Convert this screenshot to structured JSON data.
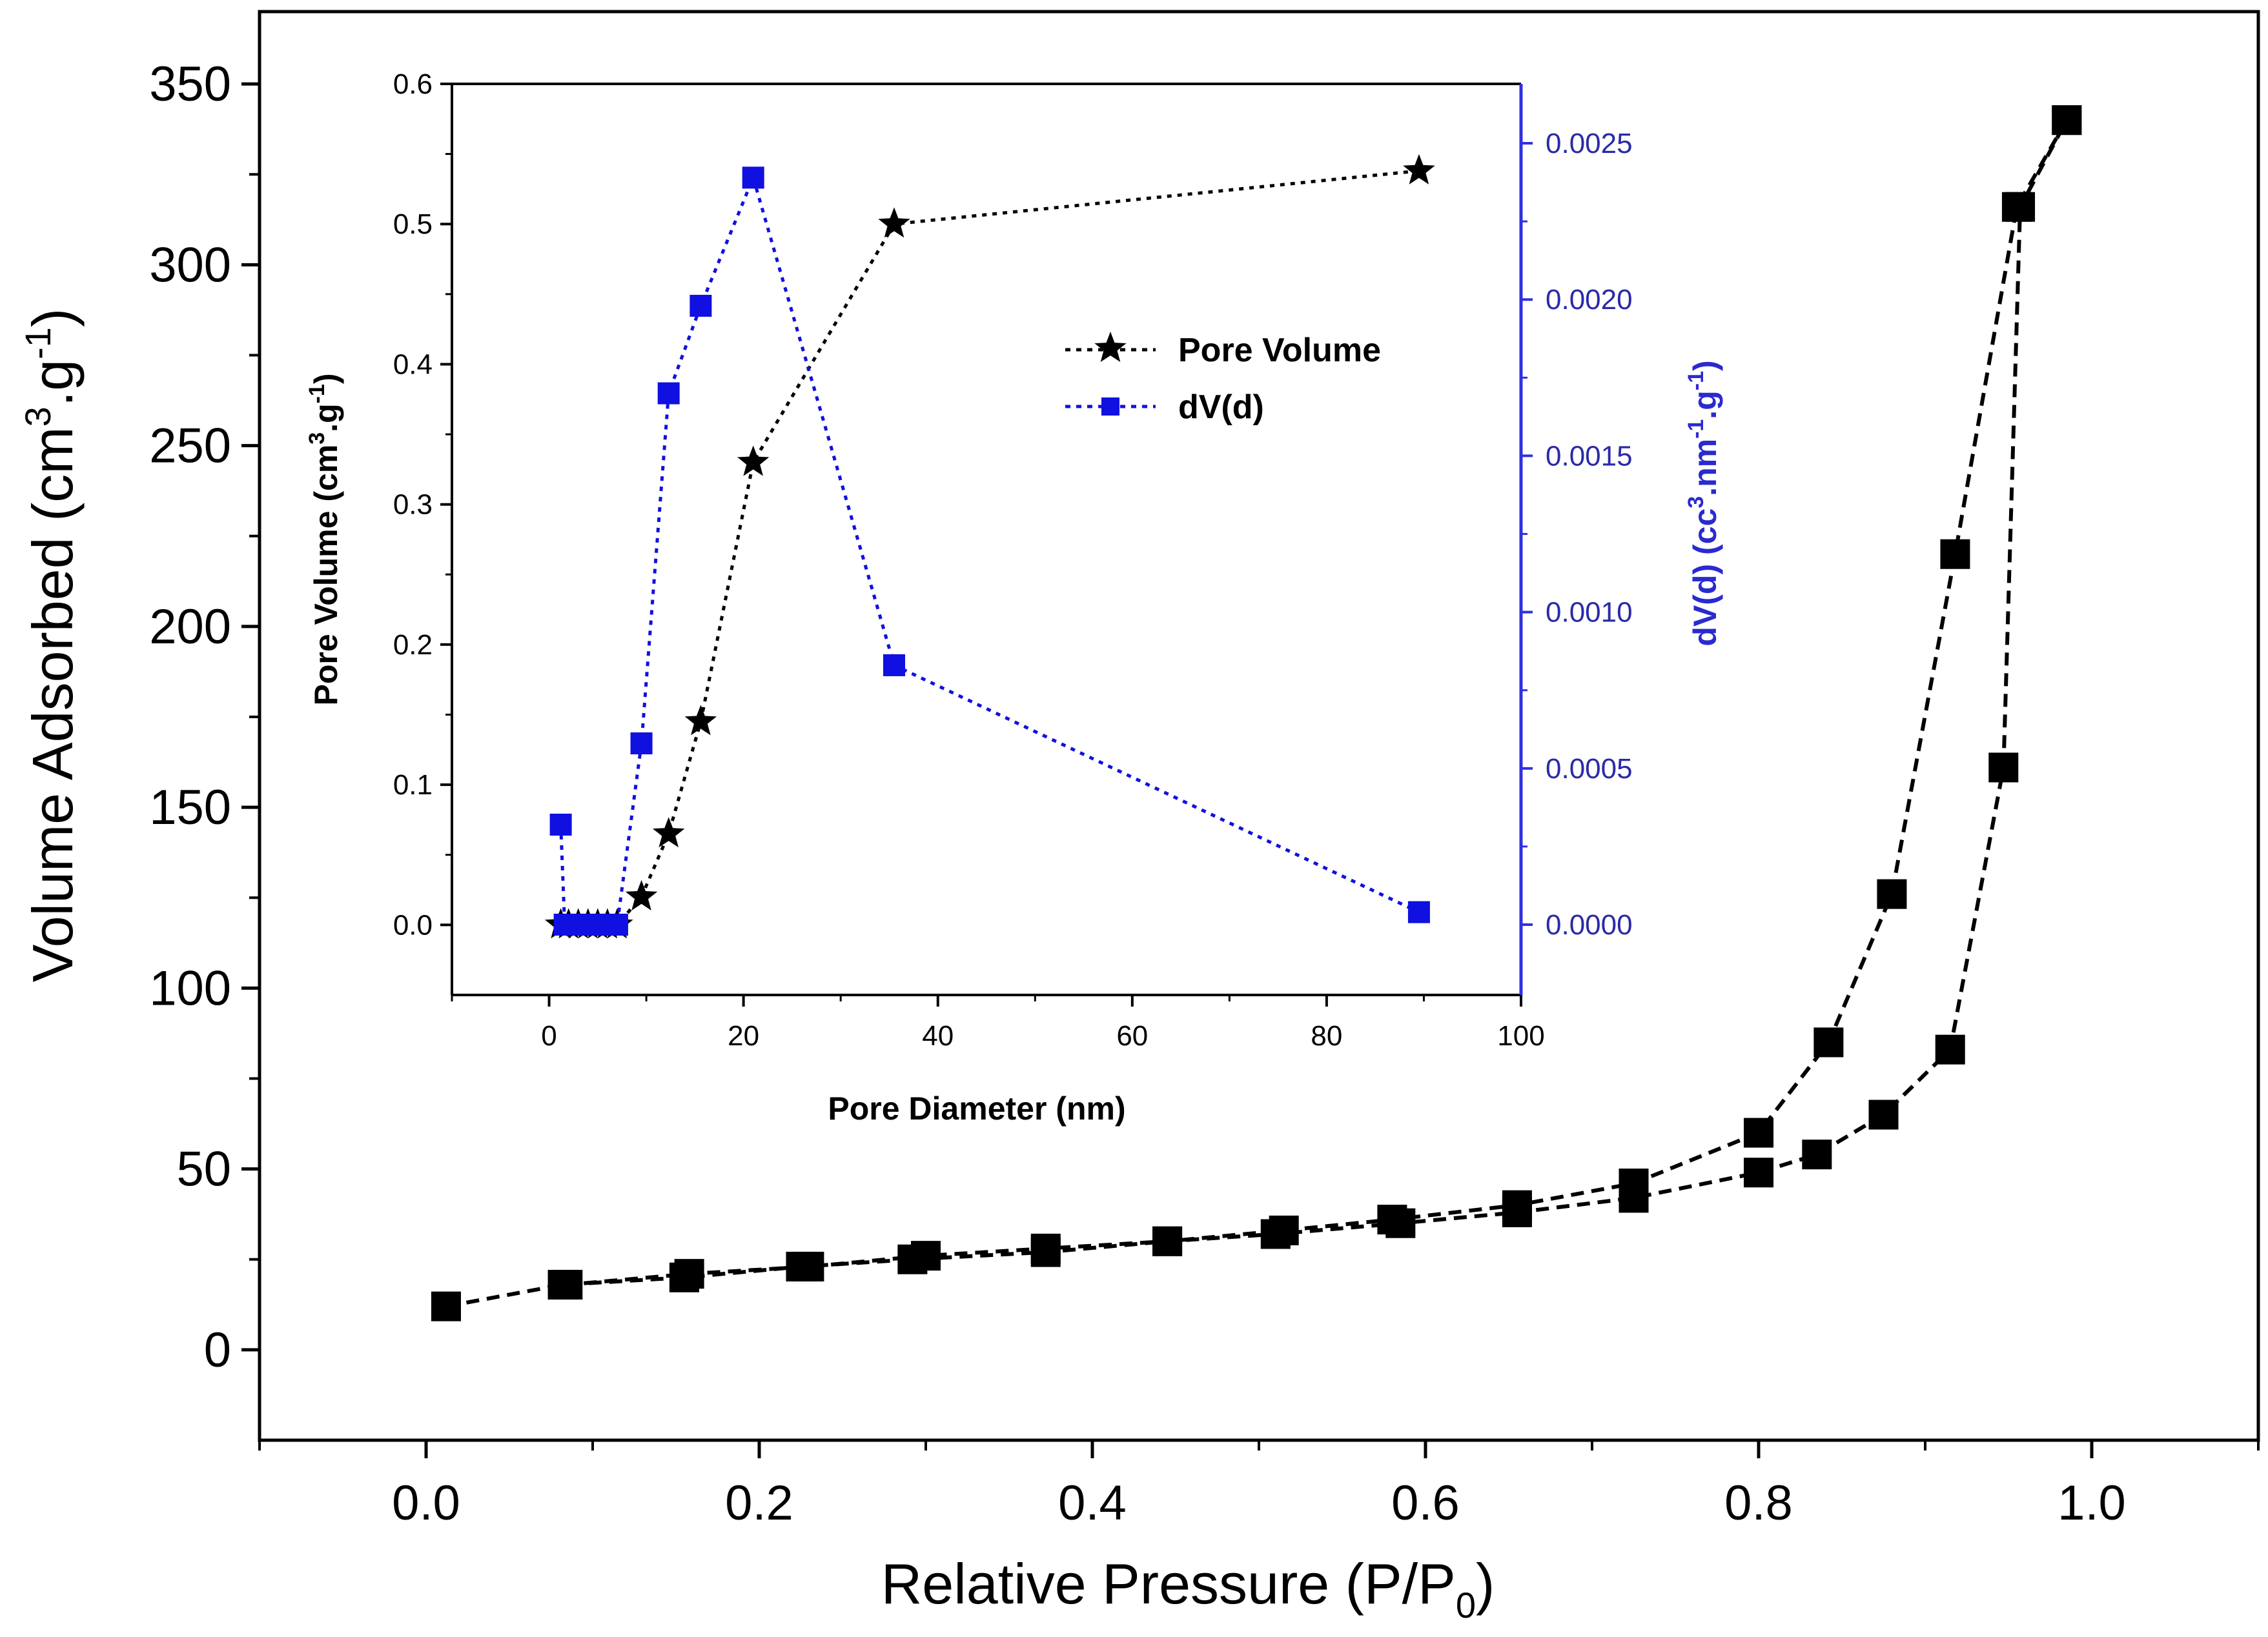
{
  "chart_data": [
    {
      "type": "line",
      "xlabel": "Relative Pressure (P/P",
      "xlabel_sub": "0",
      "xlabel_end": ")",
      "ylabel": "Volume Adsorbed (cm",
      "ylabel_sup1": "3",
      "ylabel_mid": ".g",
      "ylabel_sup2": "-1",
      "ylabel_end": ")",
      "xlim": [
        -0.1,
        1.1
      ],
      "ylim": [
        -25,
        370
      ],
      "x_ticks": [
        {
          "value": 0.0,
          "label": "0.0"
        },
        {
          "value": 0.2,
          "label": "0.2"
        },
        {
          "value": 0.4,
          "label": "0.4"
        },
        {
          "value": 0.6,
          "label": "0.6"
        },
        {
          "value": 0.8,
          "label": "0.8"
        },
        {
          "value": 1.0,
          "label": "1.0"
        }
      ],
      "y_ticks": [
        {
          "value": 0,
          "label": "0"
        },
        {
          "value": 50,
          "label": "50"
        },
        {
          "value": 100,
          "label": "100"
        },
        {
          "value": 150,
          "label": "150"
        },
        {
          "value": 200,
          "label": "200"
        },
        {
          "value": 250,
          "label": "250"
        },
        {
          "value": 300,
          "label": "300"
        },
        {
          "value": 350,
          "label": "350"
        }
      ],
      "marker_color": "#000000",
      "series": [
        {
          "points": [
            {
              "x": 0.012,
              "y": 12
            },
            {
              "x": 0.082,
              "y": 18
            },
            {
              "x": 0.155,
              "y": 20
            },
            {
              "x": 0.225,
              "y": 23
            },
            {
              "x": 0.292,
              "y": 25
            },
            {
              "x": 0.372,
              "y": 27
            },
            {
              "x": 0.445,
              "y": 30
            },
            {
              "x": 0.51,
              "y": 32
            },
            {
              "x": 0.585,
              "y": 35
            },
            {
              "x": 0.655,
              "y": 38
            },
            {
              "x": 0.725,
              "y": 42
            },
            {
              "x": 0.8,
              "y": 49
            },
            {
              "x": 0.835,
              "y": 54
            },
            {
              "x": 0.875,
              "y": 65
            },
            {
              "x": 0.915,
              "y": 83
            },
            {
              "x": 0.947,
              "y": 161
            },
            {
              "x": 0.957,
              "y": 316
            },
            {
              "x": 0.985,
              "y": 340
            }
          ]
        },
        {
          "points": [
            {
              "x": 0.985,
              "y": 340
            },
            {
              "x": 0.955,
              "y": 316
            },
            {
              "x": 0.918,
              "y": 220
            },
            {
              "x": 0.88,
              "y": 126
            },
            {
              "x": 0.842,
              "y": 85
            },
            {
              "x": 0.8,
              "y": 60
            },
            {
              "x": 0.725,
              "y": 46
            },
            {
              "x": 0.655,
              "y": 40
            },
            {
              "x": 0.58,
              "y": 36
            },
            {
              "x": 0.515,
              "y": 33
            },
            {
              "x": 0.445,
              "y": 30
            },
            {
              "x": 0.372,
              "y": 28
            },
            {
              "x": 0.3,
              "y": 26
            },
            {
              "x": 0.23,
              "y": 23
            },
            {
              "x": 0.158,
              "y": 21
            },
            {
              "x": 0.085,
              "y": 18
            }
          ]
        }
      ]
    },
    {
      "type": "line",
      "xlabel": "Pore Diameter (nm)",
      "ylabel": "Pore Volume (cm",
      "ylabel_sup1": "3",
      "ylabel_mid": ".g",
      "ylabel_sup2": "-1",
      "ylabel_end": ")",
      "y2label": "dV(d) (cc",
      "y2label_sup1": "3",
      "y2label_mid": ".nm",
      "y2label_sup2": "-1",
      "y2label_mid2": ".g",
      "y2label_sup3": "-1",
      "y2label_end": ")",
      "xlim": [
        -10,
        100
      ],
      "ylim": [
        -0.05,
        0.6
      ],
      "y2lim": [
        -0.000225,
        0.00269
      ],
      "x_ticks": [
        {
          "value": 0,
          "label": "0"
        },
        {
          "value": 20,
          "label": "20"
        },
        {
          "value": 40,
          "label": "40"
        },
        {
          "value": 60,
          "label": "60"
        },
        {
          "value": 80,
          "label": "80"
        },
        {
          "value": 100,
          "label": "100"
        }
      ],
      "y_ticks": [
        {
          "value": 0.0,
          "label": "0.0"
        },
        {
          "value": 0.1,
          "label": "0.1"
        },
        {
          "value": 0.2,
          "label": "0.2"
        },
        {
          "value": 0.3,
          "label": "0.3"
        },
        {
          "value": 0.4,
          "label": "0.4"
        },
        {
          "value": 0.5,
          "label": "0.5"
        },
        {
          "value": 0.6,
          "label": "0.6"
        }
      ],
      "y2_ticks": [
        {
          "value": 0.0,
          "label": "0.0000"
        },
        {
          "value": 0.0005,
          "label": "0.0005"
        },
        {
          "value": 0.001,
          "label": "0.0010"
        },
        {
          "value": 0.0015,
          "label": "0.0015"
        },
        {
          "value": 0.002,
          "label": "0.0020"
        },
        {
          "value": 0.0025,
          "label": "0.0025"
        }
      ],
      "legend_position": "upper-right",
      "series": [
        {
          "name": "Pore Volume",
          "axis": "left",
          "color": "#000000",
          "marker": "star",
          "points": [
            {
              "x": 1.2,
              "y": 0.0
            },
            {
              "x": 2,
              "y": 0.0
            },
            {
              "x": 3,
              "y": 0.0
            },
            {
              "x": 4,
              "y": 0.0
            },
            {
              "x": 5,
              "y": 0.0
            },
            {
              "x": 6,
              "y": 0.0
            },
            {
              "x": 7,
              "y": 0.0
            },
            {
              "x": 9.5,
              "y": 0.02
            },
            {
              "x": 12.3,
              "y": 0.065
            },
            {
              "x": 15.6,
              "y": 0.145
            },
            {
              "x": 21,
              "y": 0.33
            },
            {
              "x": 35.5,
              "y": 0.5
            },
            {
              "x": 89.5,
              "y": 0.538
            }
          ]
        },
        {
          "name": "dV(d)",
          "axis": "right",
          "color": "#1010e0",
          "marker": "square",
          "points": [
            {
              "x": 1.2,
              "y": 0.00032
            },
            {
              "x": 1.6,
              "y": 0.0
            },
            {
              "x": 2.2,
              "y": 0.0
            },
            {
              "x": 3,
              "y": 0.0
            },
            {
              "x": 4,
              "y": 0.0
            },
            {
              "x": 5,
              "y": 0.0
            },
            {
              "x": 6,
              "y": 0.0
            },
            {
              "x": 7,
              "y": 0.0
            },
            {
              "x": 9.5,
              "y": 0.00058
            },
            {
              "x": 12.3,
              "y": 0.0017
            },
            {
              "x": 15.6,
              "y": 0.00198
            },
            {
              "x": 21,
              "y": 0.00239
            },
            {
              "x": 35.5,
              "y": 0.00083
            },
            {
              "x": 89.5,
              "y": 4e-05
            }
          ]
        }
      ]
    }
  ]
}
